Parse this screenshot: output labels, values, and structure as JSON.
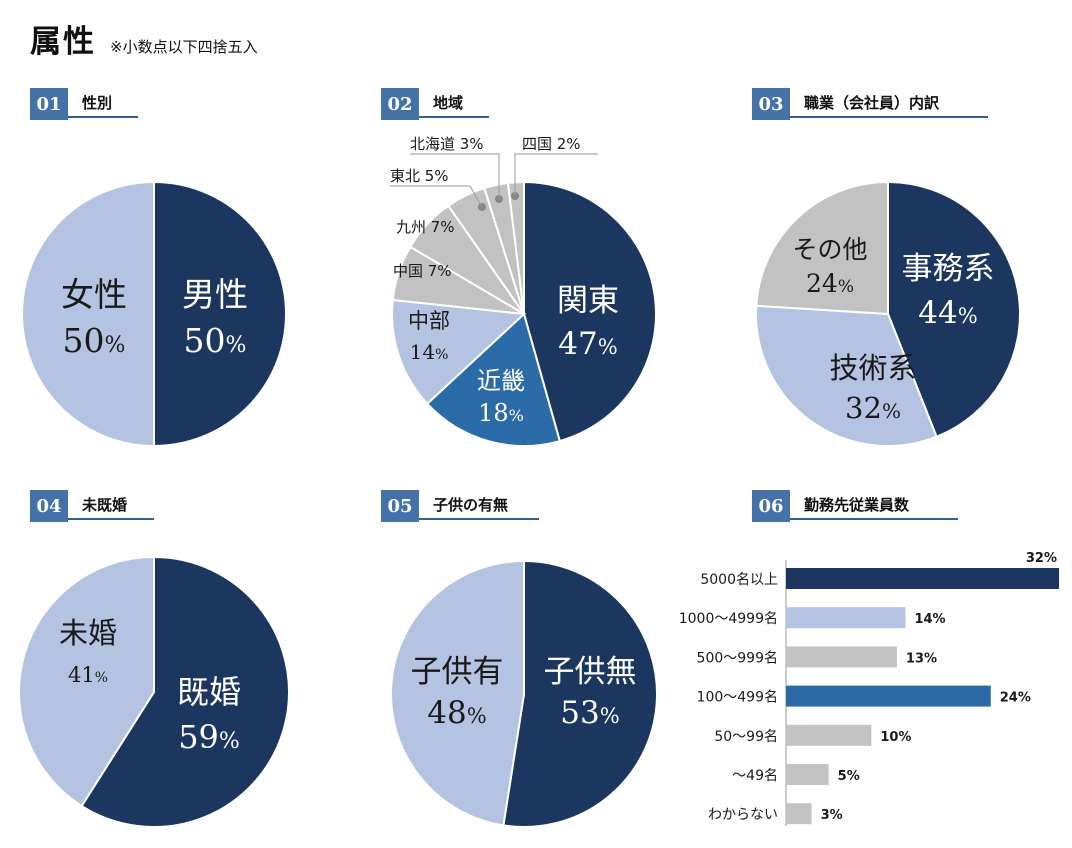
{
  "header": {
    "title": "属性",
    "note": "※小数点以下四捨五入"
  },
  "colors": {
    "navy": "#1b365f",
    "blue": "#2b6ca8",
    "light": "#b4c3e1",
    "gray": "#c2c2c2",
    "accent": "#4472a8"
  },
  "sections": [
    {
      "num": "01",
      "label": "性別"
    },
    {
      "num": "02",
      "label": "地域"
    },
    {
      "num": "03",
      "label": "職業（会社員）内訳"
    },
    {
      "num": "04",
      "label": "未既婚"
    },
    {
      "num": "05",
      "label": "子供の有無"
    },
    {
      "num": "06",
      "label": "勤務先従業員数"
    }
  ],
  "chart_data": [
    {
      "type": "pie",
      "title": "性別",
      "labels": [
        "男性",
        "女性"
      ],
      "values": [
        50,
        50
      ]
    },
    {
      "type": "pie",
      "title": "地域",
      "labels": [
        "関東",
        "近畿",
        "中部",
        "中国",
        "九州",
        "東北",
        "北海道",
        "四国"
      ],
      "values": [
        47,
        18,
        14,
        7,
        7,
        5,
        3,
        2
      ]
    },
    {
      "type": "pie",
      "title": "職業（会社員）内訳",
      "labels": [
        "事務系",
        "技術系",
        "その他"
      ],
      "values": [
        44,
        32,
        24
      ]
    },
    {
      "type": "pie",
      "title": "未既婚",
      "labels": [
        "既婚",
        "未婚"
      ],
      "values": [
        59,
        41
      ]
    },
    {
      "type": "pie",
      "title": "子供の有無",
      "labels": [
        "子供無",
        "子供有"
      ],
      "values": [
        53,
        48
      ]
    },
    {
      "type": "bar",
      "orientation": "horizontal",
      "title": "勤務先従業員数",
      "categories": [
        "5000名以上",
        "1000～4999名",
        "500～999名",
        "100～499名",
        "50～99名",
        "～49名",
        "わからない"
      ],
      "values": [
        32,
        14,
        13,
        24,
        10,
        5,
        3
      ],
      "unit": "%"
    }
  ]
}
